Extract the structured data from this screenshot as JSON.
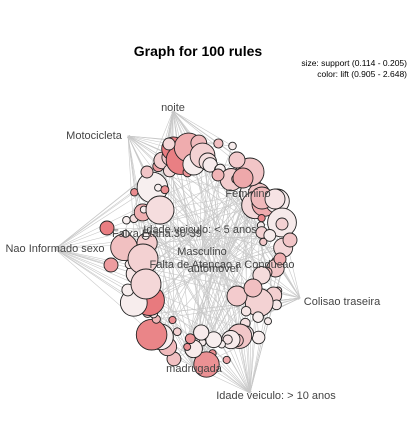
{
  "title": "Graph for 100 rules",
  "legend": {
    "size_text": "size: support (0.114 - 0.205)",
    "color_text": "color: lift (0.905 - 2.648)"
  },
  "colors": {
    "lift_low": "#f7efef",
    "lift_high": "#e8787c",
    "edge": "#c8c8c8"
  },
  "items": [
    {
      "id": "noite",
      "label": "noite"
    },
    {
      "id": "motocicleta",
      "label": "Motocicleta"
    },
    {
      "id": "feminino",
      "label": "Feminino"
    },
    {
      "id": "faixa",
      "label": "Faixa Etaria:30-39"
    },
    {
      "id": "idade5",
      "label": "Idade veiculo: < 5 anos"
    },
    {
      "id": "naoinf",
      "label": "Nao Informado sexo"
    },
    {
      "id": "masculino",
      "label": "Masculino"
    },
    {
      "id": "falta",
      "label": "Falta de Atencao a Conducao"
    },
    {
      "id": "automovel",
      "label": "automovel"
    },
    {
      "id": "colisao",
      "label": "Colisao traseira"
    },
    {
      "id": "madrugada",
      "label": "madrugada"
    },
    {
      "id": "idade10",
      "label": "Idade veiculo: > 10 anos"
    }
  ]
}
